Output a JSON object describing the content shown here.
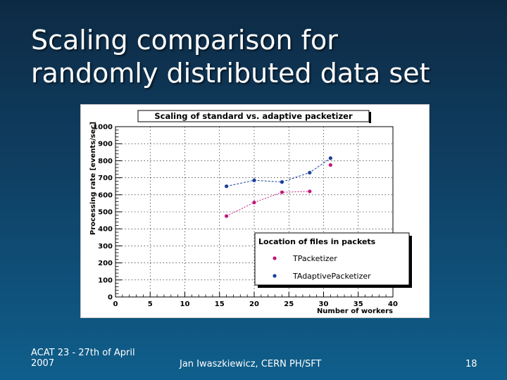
{
  "slide": {
    "title_line1": "Scaling comparison for",
    "title_line2": "randomly distributed data set",
    "footer_left_line1": "ACAT 23 - 27th of April",
    "footer_left_line2": "2007",
    "footer_center": "Jan Iwaszkiewicz, CERN PH/SFT",
    "page_number": "18"
  },
  "colors": {
    "background_top": "#0d2a44",
    "background_bottom": "#0f5f8c",
    "series_standard": "#c0187a",
    "series_adaptive": "#1b3f9c"
  },
  "chart_data": {
    "type": "scatter",
    "title": "Scaling of standard vs. adaptive packetizer",
    "xlabel": "Number of workers",
    "ylabel": "Processing rate [events/sec]",
    "xlim": [
      0,
      40
    ],
    "ylim": [
      0,
      1000
    ],
    "x_ticks": [
      0,
      5,
      10,
      15,
      20,
      25,
      30,
      35,
      40
    ],
    "y_ticks": [
      0,
      100,
      200,
      300,
      400,
      500,
      600,
      700,
      800,
      900,
      1000
    ],
    "grid": true,
    "legend_title": "Location of files in packets",
    "legend_position": "bottom-right",
    "series": [
      {
        "name": "TPacketizer",
        "x": [
          16,
          20,
          24,
          28,
          31
        ],
        "y": [
          475,
          555,
          615,
          620,
          775
        ],
        "color": "#c0187a",
        "connected_x": [
          16,
          20,
          24,
          28
        ]
      },
      {
        "name": "TAdaptivePacketizer",
        "x": [
          16,
          20,
          24,
          28,
          31
        ],
        "y": [
          650,
          685,
          675,
          730,
          815
        ],
        "color": "#1b3f9c",
        "connected_x": [
          16,
          20,
          24,
          28,
          31
        ]
      }
    ]
  }
}
